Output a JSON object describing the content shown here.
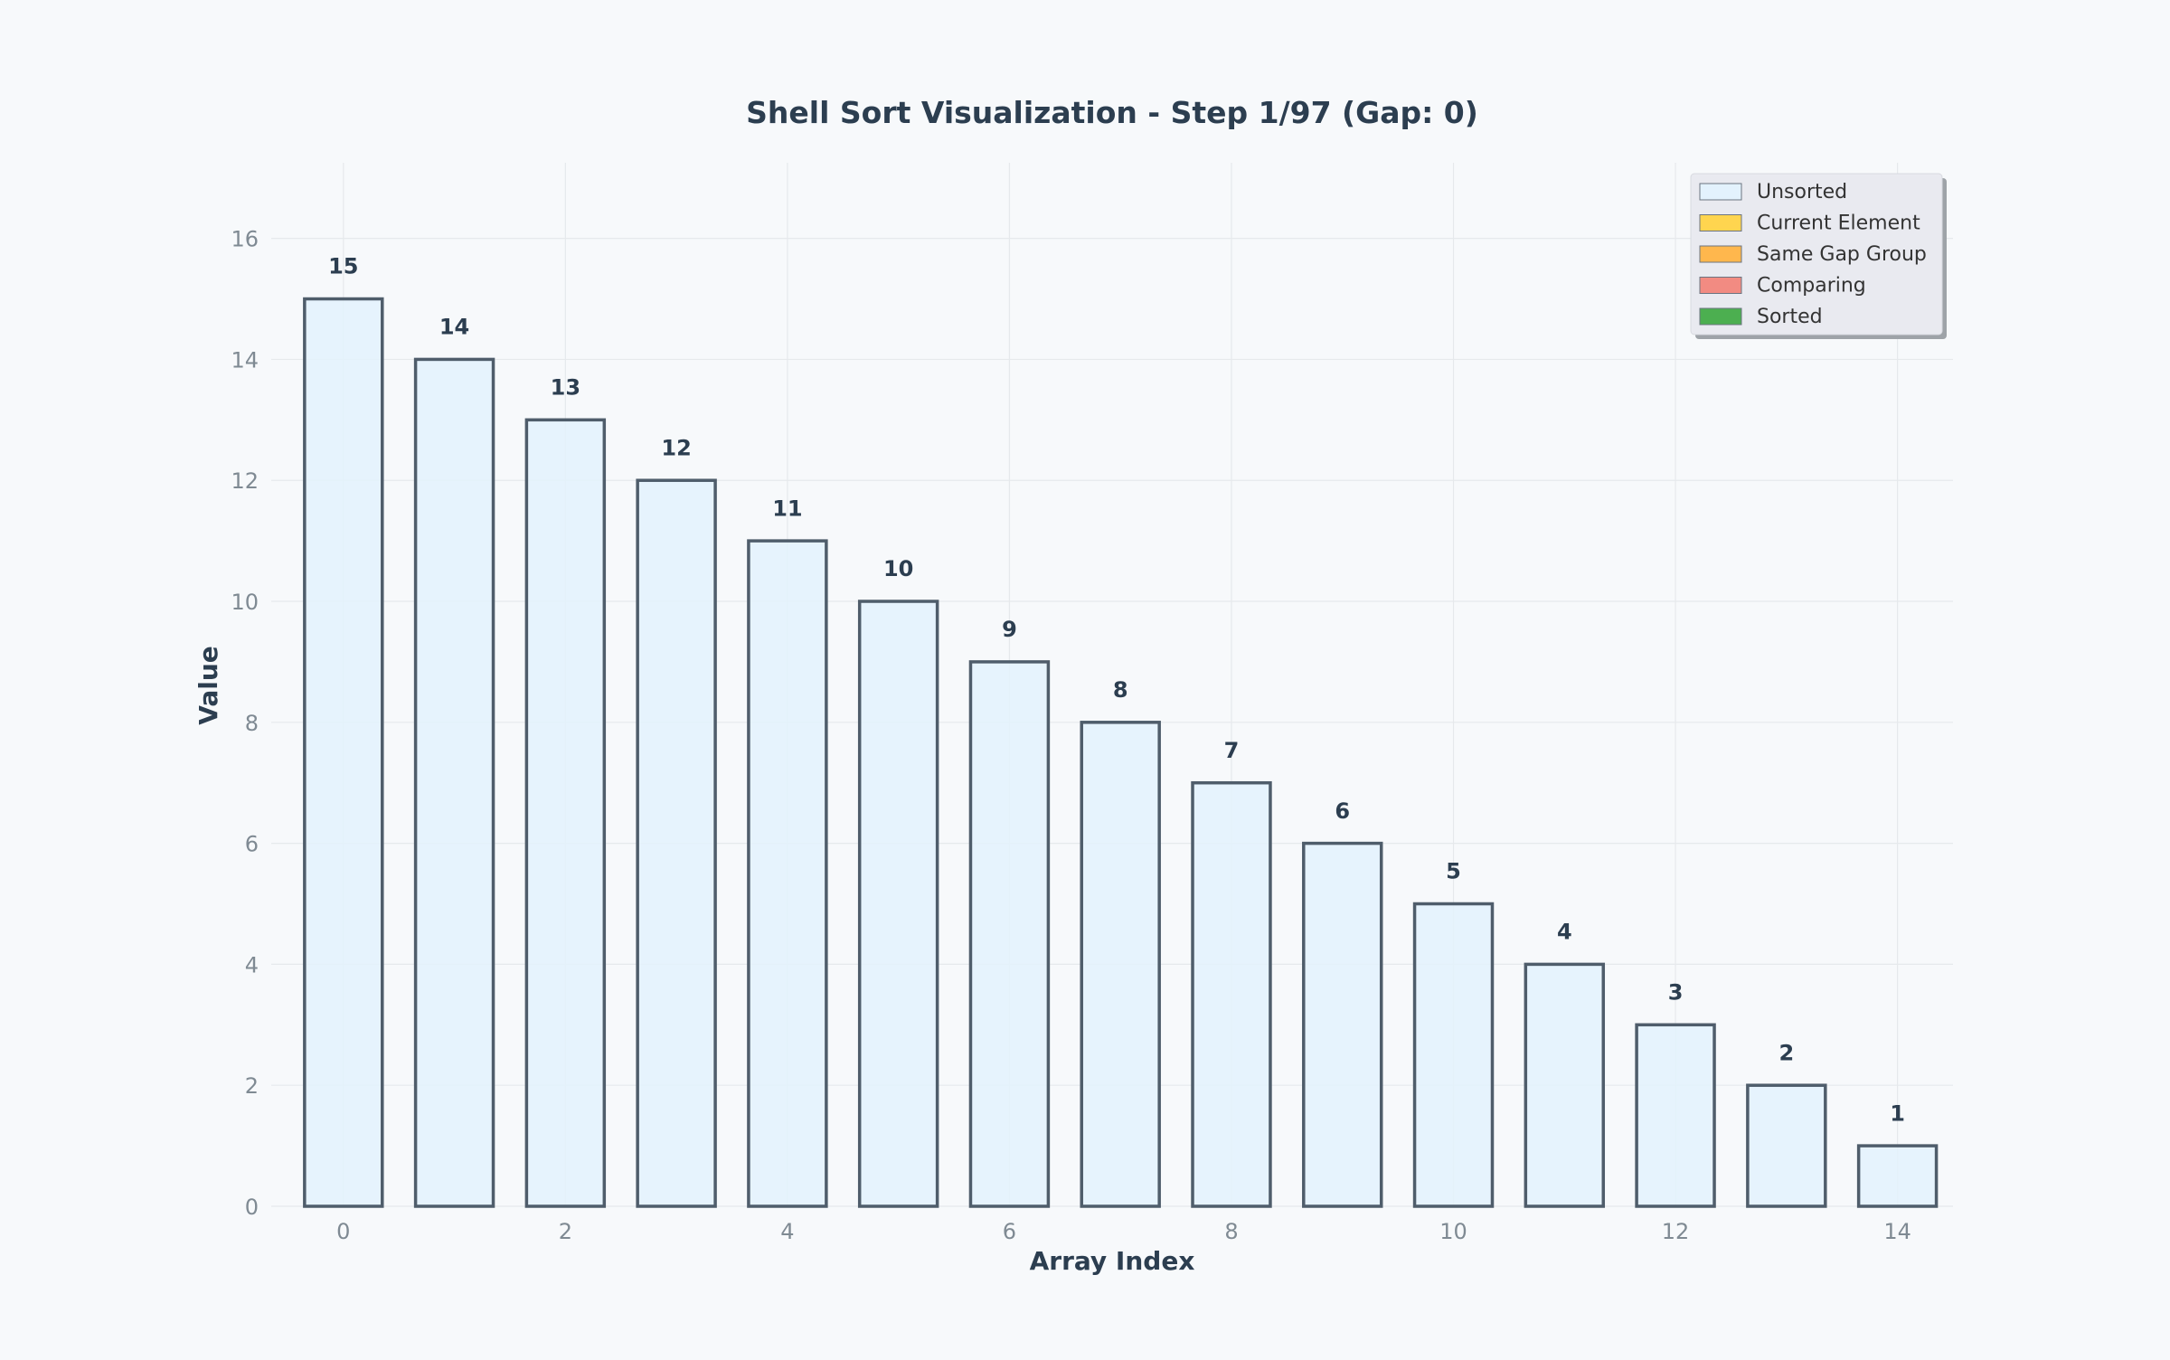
{
  "chart_data": {
    "type": "bar",
    "title": "Shell Sort Visualization - Step 1/97 (Gap: 0)",
    "xlabel": "Array Index",
    "ylabel": "Value",
    "categories": [
      0,
      1,
      2,
      3,
      4,
      5,
      6,
      7,
      8,
      9,
      10,
      11,
      12,
      13,
      14
    ],
    "values": [
      15,
      14,
      13,
      12,
      11,
      10,
      9,
      8,
      7,
      6,
      5,
      4,
      3,
      2,
      1
    ],
    "bar_state": [
      "Unsorted",
      "Unsorted",
      "Unsorted",
      "Unsorted",
      "Unsorted",
      "Unsorted",
      "Unsorted",
      "Unsorted",
      "Unsorted",
      "Unsorted",
      "Unsorted",
      "Unsorted",
      "Unsorted",
      "Unsorted",
      "Unsorted"
    ],
    "xticks": [
      0,
      2,
      4,
      6,
      8,
      10,
      12,
      14
    ],
    "yticks": [
      0,
      2,
      4,
      6,
      8,
      10,
      12,
      14,
      16
    ],
    "xlim": [
      -0.65,
      14.5
    ],
    "ylim": [
      0,
      17.25
    ],
    "grid": true,
    "legend_position": "top-right",
    "legend": [
      {
        "label": "Unsorted",
        "color": "#e3f2fd"
      },
      {
        "label": "Current Element",
        "color": "#ffd54f"
      },
      {
        "label": "Same Gap Group",
        "color": "#ffb74d"
      },
      {
        "label": "Comparing",
        "color": "#f28b82"
      },
      {
        "label": "Sorted",
        "color": "#4caf50"
      }
    ],
    "colors": {
      "background": "#f7f9fb",
      "bar_edge": "#4f5d6b",
      "text_dark": "#2c3e50",
      "tick_text": "#7f8a93",
      "grid": "#e6e9ec",
      "legend_bg": "#e9eaf0"
    }
  }
}
